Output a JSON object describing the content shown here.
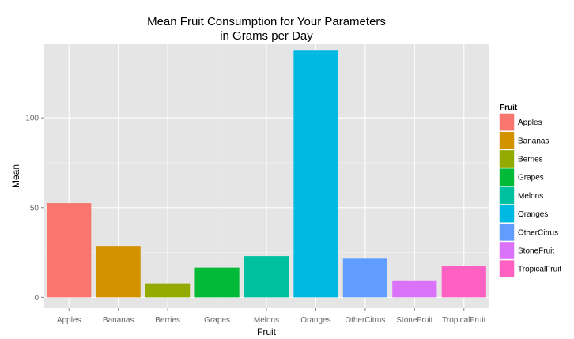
{
  "chart_data": {
    "type": "bar",
    "title_line1": "Mean Fruit Consumption for Your Parameters",
    "title_line2": "in Grams per Day",
    "xlabel": "Fruit",
    "ylabel": "Mean",
    "categories": [
      "Apples",
      "Bananas",
      "Berries",
      "Grapes",
      "Melons",
      "Oranges",
      "OtherCitrus",
      "StoneFruit",
      "TropicalFruit"
    ],
    "values": [
      52.5,
      28.7,
      7.8,
      16.6,
      23.0,
      137.8,
      21.6,
      9.5,
      17.7
    ],
    "colors": [
      "#F8766D",
      "#D39200",
      "#93AA00",
      "#00BA38",
      "#00C19F",
      "#00B9E3",
      "#619CFF",
      "#DB72FB",
      "#FF61C3"
    ],
    "yticks": [
      0,
      50,
      100
    ],
    "ylim": [
      -6,
      141
    ],
    "grid": true,
    "legend": {
      "title": "Fruit",
      "position": "right"
    }
  }
}
